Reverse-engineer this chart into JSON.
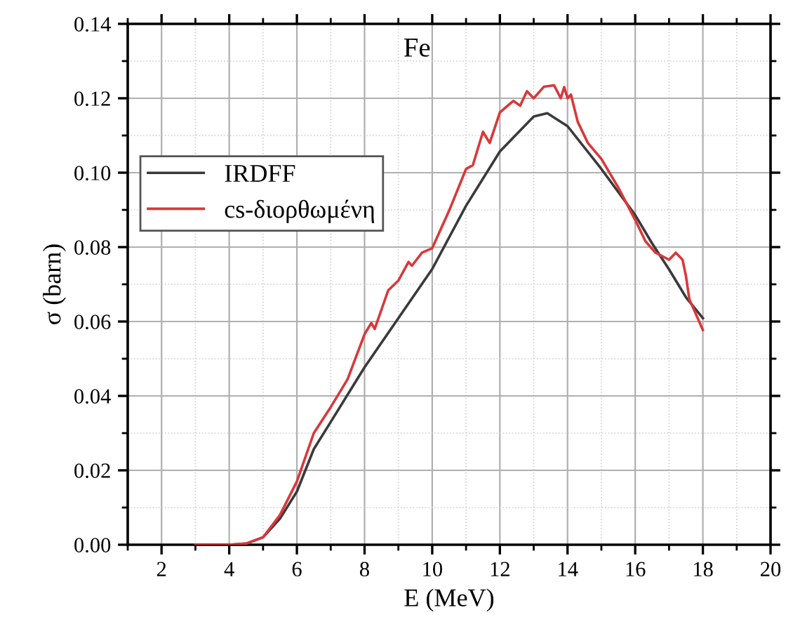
{
  "chart_data": {
    "type": "line",
    "xlabel": "E (MeV)",
    "ylabel": "σ (barn)",
    "annotations": [
      "Fe"
    ],
    "xlim": [
      1,
      20
    ],
    "xticks": [
      2,
      4,
      6,
      8,
      10,
      12,
      14,
      16,
      18,
      20
    ],
    "ylim": [
      0,
      0.14
    ],
    "yticks": [
      {
        "value": 0,
        "label": "0.00"
      },
      0.02,
      0.04,
      0.06,
      0.08,
      {
        "value": 0.1,
        "label": "0.10"
      },
      0.12,
      0.14
    ],
    "grid": true,
    "legend": "top left",
    "marker": "none",
    "line_style": "solid",
    "series": [
      {
        "name": "IRDFF",
        "color": "#3a3a3a",
        "x": [
          3,
          4,
          4.5,
          5,
          5.5,
          6,
          6.5,
          7,
          8,
          9,
          10,
          11,
          12,
          13,
          13.4,
          14,
          15,
          16,
          16.5,
          17,
          17.5,
          18
        ],
        "values": [
          0,
          0,
          0.0003,
          0.002,
          0.007,
          0.0143,
          0.0257,
          0.033,
          0.0477,
          0.0609,
          0.0741,
          0.0911,
          0.1057,
          0.1151,
          0.116,
          0.1125,
          0.101,
          0.0886,
          0.081,
          0.074,
          0.0665,
          0.0609
        ]
      },
      {
        "name": "cs-διορθωμένη",
        "color": "#d9383a",
        "x": [
          3,
          4,
          4.5,
          5,
          5.5,
          6,
          6.5,
          7,
          7.5,
          8,
          8.2,
          8.3,
          8.7,
          9,
          9.3,
          9.4,
          9.7,
          10,
          10.5,
          11,
          11.2,
          11.5,
          11.7,
          12,
          12.4,
          12.6,
          12.8,
          13,
          13.3,
          13.6,
          13.8,
          13.9,
          14,
          14.1,
          14.3,
          14.6,
          15,
          15.5,
          16,
          16.3,
          16.6,
          17,
          17.2,
          17.4,
          17.5,
          17.6,
          18
        ],
        "values": [
          0,
          0,
          0.0003,
          0.002,
          0.008,
          0.017,
          0.03,
          0.037,
          0.0445,
          0.0566,
          0.0596,
          0.058,
          0.0684,
          0.071,
          0.076,
          0.075,
          0.0785,
          0.0797,
          0.0898,
          0.101,
          0.102,
          0.111,
          0.108,
          0.1162,
          0.1193,
          0.118,
          0.1219,
          0.12,
          0.1231,
          0.1235,
          0.12,
          0.123,
          0.12,
          0.121,
          0.1137,
          0.108,
          0.1037,
          0.096,
          0.0873,
          0.0816,
          0.0785,
          0.0766,
          0.0785,
          0.0766,
          0.0722,
          0.066,
          0.0577
        ]
      }
    ]
  }
}
